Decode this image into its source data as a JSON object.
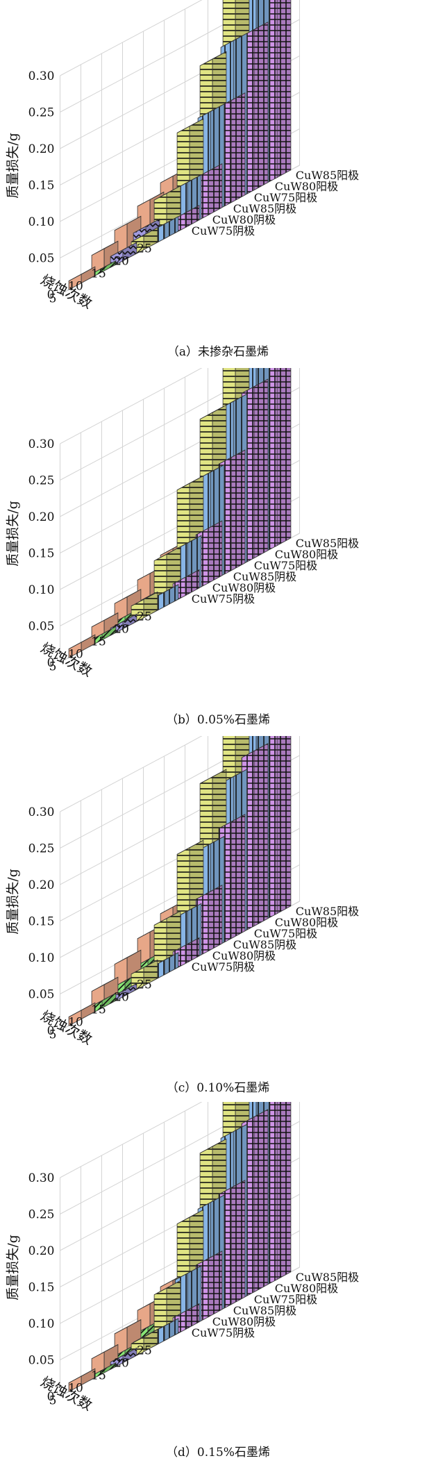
{
  "chart_data": [
    {
      "type": "bar3d",
      "caption": "（a）未掺杂石墨烯",
      "zlabel": "质量损失/g",
      "xlabel": "烧蚀次数",
      "x": [
        "5",
        "10",
        "15",
        "20",
        "25"
      ],
      "zticks": [
        "0",
        "0.05",
        "0.10",
        "0.15",
        "0.20",
        "0.25",
        "0.30"
      ],
      "zlim": [
        0,
        0.3
      ],
      "series": [
        {
          "name": "CuW75阴极",
          "values": [
            0.012,
            0.03,
            0.047,
            0.063,
            0.078
          ]
        },
        {
          "name": "CuW80阴极",
          "values": [
            0.005,
            0.01,
            0.015,
            0.02,
            0.025
          ]
        },
        {
          "name": "CuW85阴极",
          "values": [
            0.015,
            0.03,
            0.045,
            0.063,
            0.108
          ]
        },
        {
          "name": "CuW75阳极",
          "values": [
            0.02,
            0.06,
            0.135,
            0.21,
            0.3
          ]
        },
        {
          "name": "CuW80阳极",
          "values": [
            0.02,
            0.06,
            0.14,
            0.22,
            0.3
          ]
        },
        {
          "name": "CuW85阳极",
          "values": [
            0.02,
            0.06,
            0.14,
            0.22,
            0.3
          ]
        }
      ]
    },
    {
      "type": "bar3d",
      "caption": "（b）0.05%石墨烯",
      "zlabel": "质量损失/g",
      "xlabel": "烧蚀次数",
      "x": [
        "5",
        "10",
        "15",
        "20",
        "25"
      ],
      "zticks": [
        "0",
        "0.05",
        "0.10",
        "0.15",
        "0.20",
        "0.25",
        "0.30"
      ],
      "zlim": [
        0,
        0.3
      ],
      "series": [
        {
          "name": "CuW75阴极",
          "values": [
            0.012,
            0.025,
            0.04,
            0.055,
            0.072
          ]
        },
        {
          "name": "CuW80阴极",
          "values": [
            0.008,
            0.015,
            0.025,
            0.035,
            0.05
          ]
        },
        {
          "name": "CuW85阴极",
          "values": [
            0.01,
            0.02,
            0.035,
            0.048,
            0.06
          ]
        },
        {
          "name": "CuW75阳极",
          "values": [
            0.025,
            0.07,
            0.15,
            0.23,
            0.3
          ]
        },
        {
          "name": "CuW80阳极",
          "values": [
            0.02,
            0.07,
            0.15,
            0.23,
            0.3
          ]
        },
        {
          "name": "CuW85阳极",
          "values": [
            0.025,
            0.075,
            0.155,
            0.235,
            0.3
          ]
        }
      ]
    },
    {
      "type": "bar3d",
      "caption": "（c）0.10%石墨烯",
      "zlabel": "质量损失/g",
      "xlabel": "烧蚀次数",
      "x": [
        "5",
        "10",
        "15",
        "20",
        "25"
      ],
      "zticks": [
        "0",
        "0.05",
        "0.10",
        "0.15",
        "0.20",
        "0.25",
        "0.30"
      ],
      "zlim": [
        0,
        0.3
      ],
      "series": [
        {
          "name": "CuW75阴极",
          "values": [
            0.012,
            0.03,
            0.05,
            0.068,
            0.085
          ]
        },
        {
          "name": "CuW80阴极",
          "values": [
            0.01,
            0.02,
            0.032,
            0.045,
            0.06
          ]
        },
        {
          "name": "CuW85阴极",
          "values": [
            0.008,
            0.018,
            0.03,
            0.045,
            0.065
          ]
        },
        {
          "name": "CuW75阳极",
          "values": [
            0.025,
            0.075,
            0.155,
            0.235,
            0.3
          ]
        },
        {
          "name": "CuW80阳极",
          "values": [
            0.02,
            0.07,
            0.145,
            0.22,
            0.3
          ]
        },
        {
          "name": "CuW85阳极",
          "values": [
            0.025,
            0.08,
            0.16,
            0.24,
            0.3
          ]
        }
      ]
    },
    {
      "type": "bar3d",
      "caption": "（d）0.15%石墨烯",
      "zlabel": "质量损失/g",
      "xlabel": "烧蚀次数",
      "x": [
        "5",
        "10",
        "15",
        "20",
        "25"
      ],
      "zticks": [
        "0",
        "0.05",
        "0.10",
        "0.15",
        "0.20",
        "0.25",
        "0.30"
      ],
      "zlim": [
        0,
        0.3
      ],
      "series": [
        {
          "name": "CuW75阴极",
          "values": [
            0.012,
            0.028,
            0.045,
            0.06,
            0.075
          ]
        },
        {
          "name": "CuW80阴极",
          "values": [
            0.005,
            0.015,
            0.03,
            0.045,
            0.065
          ]
        },
        {
          "name": "CuW85阴极",
          "values": [
            0.01,
            0.02,
            0.035,
            0.05,
            0.07
          ]
        },
        {
          "name": "CuW75阳极",
          "values": [
            0.02,
            0.07,
            0.15,
            0.23,
            0.3
          ]
        },
        {
          "name": "CuW80阳极",
          "values": [
            0.02,
            0.075,
            0.155,
            0.235,
            0.3
          ]
        },
        {
          "name": "CuW85阳极",
          "values": [
            0.025,
            0.08,
            0.16,
            0.24,
            0.3
          ]
        }
      ]
    }
  ],
  "colors": {
    "CuW75阴极": "#f3b08f",
    "CuW80阴极": "#8ff07c",
    "CuW85阴极": "#a9a2ea",
    "CuW75阳极": "#ecf08a",
    "CuW80阳极": "#8fbff2",
    "CuW85阳极": "#d99cf2"
  }
}
